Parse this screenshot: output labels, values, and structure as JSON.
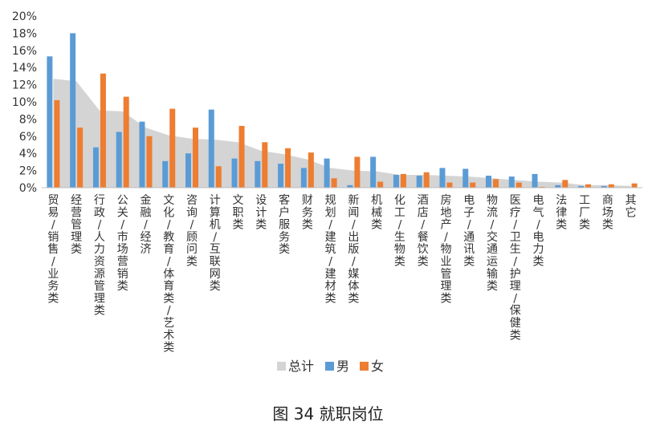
{
  "caption": "图 34 就职岗位",
  "chart_data": {
    "type": "bar",
    "title": "",
    "xlabel": "",
    "ylabel": "",
    "ylim": [
      0,
      20
    ],
    "yticks": [
      "0%",
      "2%",
      "4%",
      "6%",
      "8%",
      "10%",
      "12%",
      "14%",
      "16%",
      "18%",
      "20%"
    ],
    "categories": [
      "贸易/销售/业务类",
      "经营管理类",
      "行政/人力资源管理类",
      "公关/市场营销类",
      "金融/经济",
      "文化/教育/体育类/艺术类",
      "咨询/顾问类",
      "计算机/互联网类",
      "文职类",
      "设计类",
      "客户服务类",
      "财务类",
      "规划/建筑/建材类",
      "新闻/出版/媒体类",
      "机械类",
      "化工/生物类",
      "酒店/餐饮类",
      "房地产/物业管理类",
      "电子/通讯类",
      "物流/交通运输类",
      "医疗/卫生/护理/保健类",
      "电气/电力类",
      "法律类",
      "工厂类",
      "商场类",
      "其它"
    ],
    "series": [
      {
        "name": "总计",
        "kind": "area",
        "values": [
          12.7,
          12.4,
          9.0,
          8.9,
          7.0,
          6.1,
          5.7,
          5.6,
          5.3,
          4.3,
          3.9,
          3.3,
          2.3,
          2.0,
          1.9,
          1.5,
          1.5,
          1.4,
          1.3,
          1.1,
          0.9,
          0.7,
          0.6,
          0.3,
          0.3,
          0.2
        ]
      },
      {
        "name": "男",
        "kind": "bar",
        "values": [
          15.3,
          18.0,
          4.7,
          6.5,
          7.7,
          3.1,
          4.0,
          9.1,
          3.4,
          3.1,
          2.8,
          2.3,
          3.4,
          0.3,
          3.6,
          1.5,
          1.4,
          2.3,
          2.2,
          1.4,
          1.3,
          1.6,
          0.3,
          0.2,
          0.2,
          0.0
        ]
      },
      {
        "name": "女",
        "kind": "bar",
        "values": [
          10.2,
          7.0,
          13.3,
          10.6,
          6.0,
          9.2,
          7.0,
          2.5,
          7.2,
          5.3,
          4.6,
          4.1,
          1.1,
          3.6,
          0.7,
          1.6,
          1.8,
          0.6,
          0.6,
          1.0,
          0.6,
          0.1,
          0.9,
          0.4,
          0.4,
          0.5
        ]
      }
    ],
    "legend": {
      "position": "bottom",
      "items": [
        "总计",
        "男",
        "女"
      ]
    },
    "grid": false,
    "colors": {
      "总计": "#d4d4d4",
      "男": "#5b9bd5",
      "女": "#ed7d31"
    }
  }
}
